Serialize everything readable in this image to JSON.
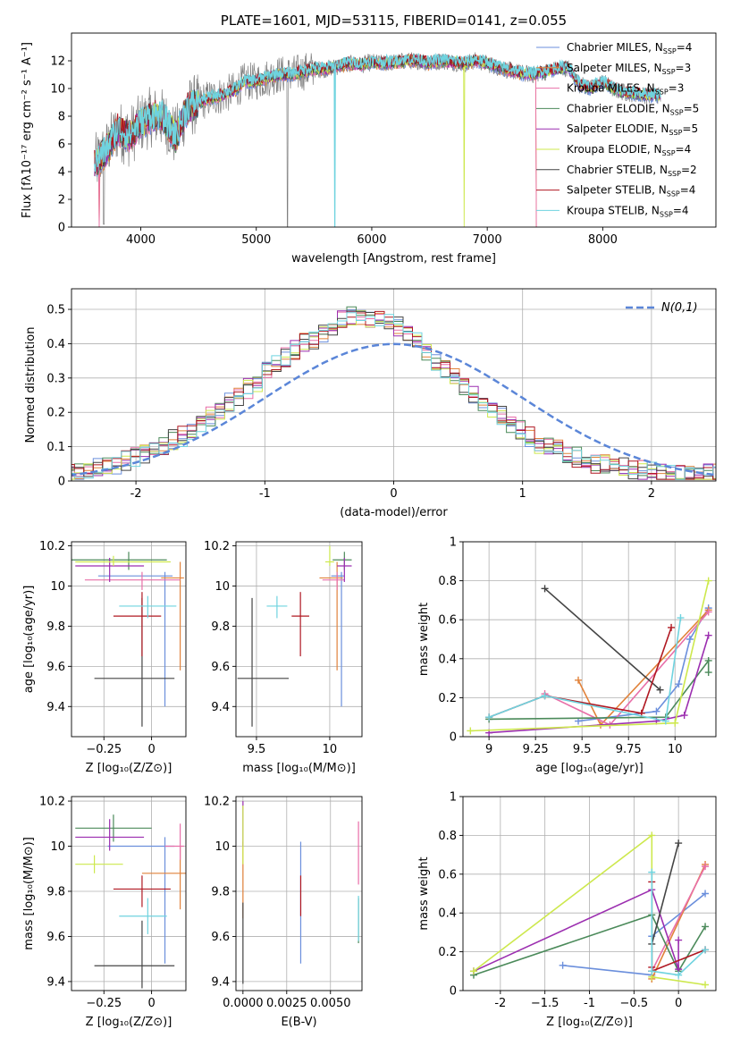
{
  "colors": [
    "#6b8fdc",
    "#e1823a",
    "#e86fa8",
    "#4b8a5a",
    "#9c2fb0",
    "#cde84d",
    "#444444",
    "#b01822",
    "#6fd3df",
    "#7f7f7f"
  ],
  "chart_data": [
    {
      "id": "spectrum",
      "type": "line",
      "title": "PLATE=1601, MJD=53115, FIBERID=0141, z=0.055",
      "xlabel": "wavelength [Angstrom, rest frame]",
      "ylabel": "Flux [fλ10⁻¹⁷ erg cm⁻² s⁻¹ A⁻¹]",
      "xlim": [
        3400,
        8980
      ],
      "ylim": [
        0,
        14
      ],
      "xticks": [
        4000,
        5000,
        6000,
        7000,
        8000
      ],
      "yticks": [
        0,
        2,
        4,
        6,
        8,
        10,
        12
      ],
      "grid": false,
      "legend_position": "top-right",
      "envelope": {
        "x": [
          3600,
          3700,
          3800,
          3900,
          4000,
          4100,
          4200,
          4300,
          4400,
          4500,
          4600,
          4700,
          4800,
          4900,
          5000,
          5100,
          5200,
          5300,
          5400,
          5500,
          5600,
          5700,
          5800,
          5900,
          6000,
          6100,
          6200,
          6300,
          6400,
          6500,
          6600,
          6700,
          6800,
          6900,
          7000,
          7100,
          7200,
          7300,
          7400,
          7500,
          7600,
          7700,
          7800,
          7900,
          8000,
          8100,
          8200,
          8300,
          8400,
          8500
        ],
        "y": [
          4.5,
          5.5,
          7.0,
          6.5,
          7.5,
          8.0,
          7.8,
          6.5,
          8.5,
          9.0,
          9.3,
          9.5,
          9.8,
          10.5,
          10.5,
          10.8,
          11.0,
          11.0,
          11.2,
          11.4,
          11.4,
          11.6,
          11.8,
          11.7,
          11.9,
          11.8,
          11.9,
          12.0,
          12.0,
          11.8,
          12.0,
          11.9,
          11.8,
          12.0,
          11.8,
          11.5,
          11.3,
          11.1,
          11.0,
          11.2,
          11.4,
          11.5,
          10.3,
          10.0,
          10.5,
          9.9,
          9.7,
          9.6,
          9.5,
          9.5
        ]
      },
      "series": [
        {
          "name": "Chabrier MILES, N_SSP=4"
        },
        {
          "name": "Salpeter MILES, N_SSP=3"
        },
        {
          "name": "Kroupa MILES, N_SSP=3"
        },
        {
          "name": "Chabrier ELODIE, N_SSP=5"
        },
        {
          "name": "Salpeter ELODIE, N_SSP=5"
        },
        {
          "name": "Kroupa ELODIE, N_SSP=4"
        },
        {
          "name": "Chabrier STELIB, N_SSP=2"
        },
        {
          "name": "Salpeter STELIB, N_SSP=4"
        },
        {
          "name": "Kroupa STELIB, N_SSP=4"
        }
      ]
    },
    {
      "id": "residual-hist",
      "type": "line",
      "xlabel": "(data-model)/error",
      "ylabel": "Normed distribution",
      "xlim": [
        -2.5,
        2.5
      ],
      "ylim": [
        0,
        0.56
      ],
      "xticks": [
        -2,
        -1,
        0,
        1,
        2
      ],
      "yticks": [
        0.0,
        0.1,
        0.2,
        0.3,
        0.4,
        0.5
      ],
      "grid": true,
      "legend_position": "top-right",
      "reference_curve": {
        "label": "N(0,1)",
        "mean": 0,
        "sd": 1
      },
      "bin_width": 0.1,
      "hist_envelope": [
        0.02,
        0.03,
        0.03,
        0.04,
        0.04,
        0.05,
        0.06,
        0.07,
        0.08,
        0.09,
        0.1,
        0.12,
        0.13,
        0.15,
        0.17,
        0.19,
        0.21,
        0.23,
        0.25,
        0.27,
        0.29,
        0.32,
        0.34,
        0.36,
        0.38,
        0.4,
        0.41,
        0.43,
        0.45,
        0.47,
        0.48,
        0.48,
        0.47,
        0.47,
        0.46,
        0.45,
        0.43,
        0.41,
        0.38,
        0.35,
        0.33,
        0.3,
        0.27,
        0.25,
        0.23,
        0.21,
        0.19,
        0.17,
        0.15,
        0.13,
        0.11,
        0.1,
        0.09,
        0.08,
        0.07,
        0.06,
        0.05,
        0.05,
        0.04,
        0.04,
        0.03,
        0.03,
        0.03,
        0.02,
        0.02,
        0.02,
        0.02,
        0.02,
        0.02,
        0.02
      ]
    },
    {
      "id": "age-vs-Z",
      "type": "scatter",
      "xlabel": "Z [log₁₀(Z/Z⊙)]",
      "ylabel": "age  [log₁₀(age/yr)]",
      "xlim": [
        -0.42,
        0.18
      ],
      "ylim": [
        9.25,
        10.22
      ],
      "xticks": [
        -0.25,
        0.0
      ],
      "yticks": [
        9.4,
        9.6,
        9.8,
        10.0,
        10.2
      ],
      "grid": true,
      "points": [
        {
          "x": 0.07,
          "y": 10.05,
          "xerr": [
            0.35,
            0.04
          ],
          "yerr": [
            0.65,
            0.02
          ]
        },
        {
          "x": 0.15,
          "y": 10.04,
          "xerr": [
            0.1,
            0.02
          ],
          "yerr": [
            0.46,
            0.08
          ]
        },
        {
          "x": -0.05,
          "y": 10.03,
          "xerr": [
            0.3,
            0.2
          ],
          "yerr": [
            0.05,
            0.04
          ]
        },
        {
          "x": -0.12,
          "y": 10.13,
          "xerr": [
            0.3,
            0.2
          ],
          "yerr": [
            0.05,
            0.04
          ]
        },
        {
          "x": -0.22,
          "y": 10.1,
          "xerr": [
            0.18,
            0.18
          ],
          "yerr": [
            0.08,
            0.04
          ]
        },
        {
          "x": -0.2,
          "y": 10.12,
          "xerr": [
            0.2,
            0.3
          ],
          "yerr": [
            0.02,
            0.03
          ]
        },
        {
          "x": -0.05,
          "y": 9.54,
          "xerr": [
            0.25,
            0.17
          ],
          "yerr": [
            0.24,
            0.4
          ]
        },
        {
          "x": -0.05,
          "y": 9.85,
          "xerr": [
            0.15,
            0.1
          ],
          "yerr": [
            0.2,
            0.12
          ]
        },
        {
          "x": -0.02,
          "y": 9.9,
          "xerr": [
            0.15,
            0.15
          ],
          "yerr": [
            0.06,
            0.05
          ]
        }
      ]
    },
    {
      "id": "age-vs-mass",
      "type": "scatter",
      "xlabel": "mass [log₁₀(M/M⊙)]",
      "ylabel": "",
      "xlim": [
        9.36,
        10.22
      ],
      "ylim": [
        9.25,
        10.22
      ],
      "xticks": [
        9.5,
        10.0
      ],
      "yticks": [
        9.4,
        9.6,
        9.8,
        10.0,
        10.2
      ],
      "grid": true,
      "points": [
        {
          "x": 10.08,
          "y": 10.05,
          "xerr": [
            0.07,
            0.02
          ],
          "yerr": [
            0.65,
            0.02
          ]
        },
        {
          "x": 10.05,
          "y": 10.04,
          "xerr": [
            0.12,
            0.04
          ],
          "yerr": [
            0.46,
            0.08
          ]
        },
        {
          "x": 10.05,
          "y": 10.03,
          "xerr": [
            0.1,
            0.05
          ],
          "yerr": [
            0.05,
            0.04
          ]
        },
        {
          "x": 10.1,
          "y": 10.13,
          "xerr": [
            0.08,
            0.05
          ],
          "yerr": [
            0.05,
            0.04
          ]
        },
        {
          "x": 10.1,
          "y": 10.1,
          "xerr": [
            0.05,
            0.05
          ],
          "yerr": [
            0.08,
            0.04
          ]
        },
        {
          "x": 10.0,
          "y": 10.12,
          "xerr": [
            0.03,
            0.03
          ],
          "yerr": [
            0.02,
            0.08
          ]
        },
        {
          "x": 9.47,
          "y": 9.54,
          "xerr": [
            0.1,
            0.25
          ],
          "yerr": [
            0.24,
            0.4
          ]
        },
        {
          "x": 9.8,
          "y": 9.85,
          "xerr": [
            0.06,
            0.06
          ],
          "yerr": [
            0.2,
            0.12
          ]
        },
        {
          "x": 9.64,
          "y": 9.9,
          "xerr": [
            0.07,
            0.07
          ],
          "yerr": [
            0.06,
            0.05
          ]
        }
      ]
    },
    {
      "id": "massweight-vs-age",
      "type": "line",
      "xlabel": "age  [log₁₀(age/yr)]",
      "ylabel": "mass weight",
      "xlim": [
        8.86,
        10.22
      ],
      "ylim": [
        0,
        1
      ],
      "xticks": [
        9.0,
        9.25,
        9.5,
        9.75,
        10.0
      ],
      "yticks": [
        0.0,
        0.2,
        0.4,
        0.6,
        0.8,
        1.0
      ],
      "grid": true,
      "series": [
        {
          "x": [
            9.48,
            9.9,
            10.02,
            10.08,
            10.18
          ],
          "y": [
            0.08,
            0.13,
            0.27,
            0.5,
            0.66
          ]
        },
        {
          "x": [
            9.48,
            9.6,
            10.18
          ],
          "y": [
            0.29,
            0.06,
            0.65
          ]
        },
        {
          "x": [
            9.3,
            9.65,
            10.18
          ],
          "y": [
            0.22,
            0.06,
            0.64
          ]
        },
        {
          "x": [
            9.0,
            9.95,
            10.18,
            10.18
          ],
          "y": [
            0.09,
            0.1,
            0.39,
            0.33
          ]
        },
        {
          "x": [
            9.0,
            9.9,
            10.05,
            10.18
          ],
          "y": [
            0.02,
            0.08,
            0.11,
            0.52
          ]
        },
        {
          "x": [
            8.9,
            10.0,
            10.18
          ],
          "y": [
            0.03,
            0.07,
            0.8
          ]
        },
        {
          "x": [
            9.3,
            9.92
          ],
          "y": [
            0.76,
            0.24
          ]
        },
        {
          "x": [
            9.0,
            9.3,
            9.82,
            9.98
          ],
          "y": [
            0.1,
            0.21,
            0.12,
            0.56
          ]
        },
        {
          "x": [
            9.0,
            9.3,
            9.95,
            10.03
          ],
          "y": [
            0.1,
            0.21,
            0.08,
            0.61
          ]
        }
      ]
    },
    {
      "id": "mass-vs-Z",
      "type": "scatter",
      "xlabel": "Z [log₁₀(Z/Z⊙)]",
      "ylabel": "mass [log₁₀(M/M⊙)]",
      "xlim": [
        -0.42,
        0.18
      ],
      "ylim": [
        9.36,
        10.22
      ],
      "xticks": [
        -0.25,
        0.0
      ],
      "yticks": [
        9.4,
        9.6,
        9.8,
        10.0,
        10.2
      ],
      "grid": true,
      "points": [
        {
          "x": 0.07,
          "y": 10.0,
          "xerr": [
            0.3,
            0.05
          ],
          "yerr": [
            0.52,
            0.04
          ]
        },
        {
          "x": 0.15,
          "y": 9.88,
          "xerr": [
            0.2,
            0.03
          ],
          "yerr": [
            0.16,
            0.12
          ]
        },
        {
          "x": 0.15,
          "y": 10.0,
          "xerr": [
            0.08,
            0.02
          ],
          "yerr": [
            0.06,
            0.1
          ]
        },
        {
          "x": -0.2,
          "y": 10.08,
          "xerr": [
            0.2,
            0.2
          ],
          "yerr": [
            0.06,
            0.06
          ]
        },
        {
          "x": -0.22,
          "y": 10.04,
          "xerr": [
            0.18,
            0.18
          ],
          "yerr": [
            0.06,
            0.08
          ]
        },
        {
          "x": -0.3,
          "y": 9.92,
          "xerr": [
            0.1,
            0.15
          ],
          "yerr": [
            0.04,
            0.04
          ]
        },
        {
          "x": -0.05,
          "y": 9.47,
          "xerr": [
            0.25,
            0.17
          ],
          "yerr": [
            0.1,
            0.2
          ]
        },
        {
          "x": -0.05,
          "y": 9.81,
          "xerr": [
            0.15,
            0.15
          ],
          "yerr": [
            0.08,
            0.06
          ]
        },
        {
          "x": -0.02,
          "y": 9.69,
          "xerr": [
            0.15,
            0.1
          ],
          "yerr": [
            0.08,
            0.08
          ]
        }
      ]
    },
    {
      "id": "mass-vs-EBV",
      "type": "scatter",
      "xlabel": "E(B-V)",
      "ylabel": "",
      "xlim": [
        -0.0004,
        0.0068
      ],
      "ylim": [
        9.36,
        10.22
      ],
      "xticks": [
        0.0,
        0.0025,
        0.005
      ],
      "xticklabels": [
        "0.0000",
        "0.0025",
        "0.0050"
      ],
      "yticks": [
        9.4,
        9.6,
        9.8,
        10.0,
        10.2
      ],
      "grid": true,
      "points": [
        {
          "x": 0.0033,
          "y": 9.75,
          "yerr": [
            0.27,
            0.27
          ]
        },
        {
          "x": 0.0,
          "y": 9.88,
          "yerr": [
            0.2,
            0.14
          ]
        },
        {
          "x": 0.0066,
          "y": 9.97,
          "yerr": [
            0.14,
            0.14
          ]
        },
        {
          "x": 0.0066,
          "y": 9.67,
          "yerr": [
            0.1,
            0.1
          ]
        },
        {
          "x": 0.0,
          "y": 10.1,
          "yerr": [
            0.1,
            0.1
          ]
        },
        {
          "x": 0.0,
          "y": 9.98,
          "yerr": [
            0.06,
            0.2
          ]
        },
        {
          "x": 0.0,
          "y": 9.55,
          "yerr": [
            0.16,
            0.2
          ]
        },
        {
          "x": 0.0033,
          "y": 9.78,
          "yerr": [
            0.09,
            0.09
          ]
        },
        {
          "x": 0.0066,
          "y": 9.68,
          "yerr": [
            0.1,
            0.1
          ]
        }
      ]
    },
    {
      "id": "massweight-vs-Z",
      "type": "line",
      "xlabel": "Z [log₁₀(Z/Z⊙)]",
      "ylabel": "mass weight",
      "xlim": [
        -2.42,
        0.42
      ],
      "ylim": [
        0,
        1
      ],
      "xticks": [
        -2.0,
        -1.5,
        -1.0,
        -0.5,
        0.0
      ],
      "yticks": [
        0.0,
        0.2,
        0.4,
        0.6,
        0.8,
        1.0
      ],
      "grid": true,
      "series": [
        {
          "x": [
            -1.3,
            -0.3,
            -0.3,
            0.3
          ],
          "y": [
            0.13,
            0.08,
            0.28,
            0.5
          ]
        },
        {
          "x": [
            -0.3,
            0.3
          ],
          "y": [
            0.06,
            0.65
          ]
        },
        {
          "x": [
            -0.3,
            0.3
          ],
          "y": [
            0.1,
            0.64
          ]
        },
        {
          "x": [
            -2.3,
            -0.3,
            0.0,
            0.3
          ],
          "y": [
            0.08,
            0.39,
            0.1,
            0.33
          ]
        },
        {
          "x": [
            -2.3,
            -0.3,
            0.0,
            0.0
          ],
          "y": [
            0.1,
            0.52,
            0.11,
            0.26
          ]
        },
        {
          "x": [
            -2.3,
            -0.3,
            -0.3,
            0.3
          ],
          "y": [
            0.1,
            0.8,
            0.07,
            0.03
          ]
        },
        {
          "x": [
            -0.3,
            0.0
          ],
          "y": [
            0.24,
            0.76
          ]
        },
        {
          "x": [
            -0.3,
            -0.3,
            -0.3,
            0.3
          ],
          "y": [
            0.56,
            0.12,
            0.1,
            0.21
          ]
        },
        {
          "x": [
            -0.3,
            -0.3,
            0.0,
            0.3
          ],
          "y": [
            0.61,
            0.1,
            0.08,
            0.21
          ]
        }
      ]
    }
  ]
}
